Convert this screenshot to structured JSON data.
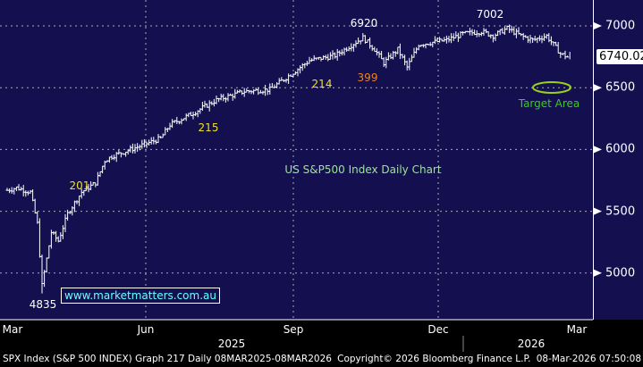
{
  "chart_data": {
    "type": "line",
    "title": "US S&P500 Index Daily Chart",
    "ylim": [
      4650,
      7200
    ],
    "yticks": [
      5000,
      5500,
      6000,
      6500,
      7000
    ],
    "xticks": [
      "Mar",
      "Jun",
      "Sep",
      "Dec",
      "Mar"
    ],
    "years": [
      "2025",
      "2026"
    ],
    "last_price": "6740.02",
    "series": [
      {
        "name": "SPX",
        "points": [
          [
            0,
            5670
          ],
          [
            4,
            5690
          ],
          [
            10,
            5655
          ],
          [
            13,
            5400
          ],
          [
            15,
            4900
          ],
          [
            19,
            5330
          ],
          [
            22,
            5260
          ],
          [
            26,
            5480
          ],
          [
            32,
            5655
          ],
          [
            38,
            5730
          ],
          [
            42,
            5910
          ],
          [
            45,
            5945
          ],
          [
            56,
            6020
          ],
          [
            66,
            6090
          ],
          [
            70,
            6200
          ],
          [
            79,
            6285
          ],
          [
            90,
            6400
          ],
          [
            102,
            6470
          ],
          [
            113,
            6485
          ],
          [
            121,
            6595
          ],
          [
            130,
            6720
          ],
          [
            141,
            6760
          ],
          [
            153,
            6905
          ],
          [
            158,
            6810
          ],
          [
            162,
            6700
          ],
          [
            168,
            6810
          ],
          [
            172,
            6665
          ],
          [
            177,
            6850
          ],
          [
            189,
            6885
          ],
          [
            196,
            6935
          ],
          [
            204,
            6955
          ],
          [
            209,
            6920
          ],
          [
            215,
            6980
          ],
          [
            221,
            6920
          ],
          [
            226,
            6885
          ],
          [
            232,
            6920
          ],
          [
            238,
            6775
          ],
          [
            242,
            6740
          ]
        ]
      }
    ],
    "annotations": {
      "low": "4835",
      "a201": "201",
      "a215": "215",
      "a214": "214",
      "a399": "399",
      "h6920": "6920",
      "h7002": "7002",
      "target": "Target Area"
    }
  },
  "website": "www.marketmatters.com.au",
  "footer": {
    "left": "SPX Index (S&P 500 INDEX) Graph 217 Daily 08MAR2025-08MAR2026",
    "mid": "Copyright© 2026 Bloomberg Finance L.P.",
    "right": "08-Mar-2026 07:50:08"
  },
  "colors": {
    "bg": "#14104f",
    "target": "#3ec81e",
    "title": "#9fe29a",
    "yellow": "#f0e020",
    "orange": "#f08020"
  }
}
